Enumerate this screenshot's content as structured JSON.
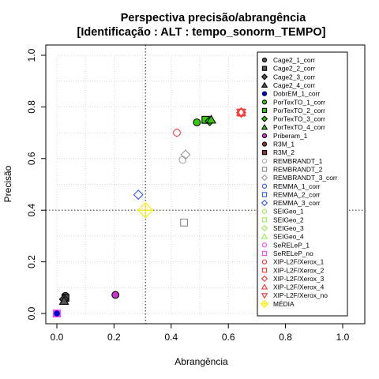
{
  "chart_data": {
    "type": "scatter",
    "title": "Perspectiva precisão/abrangência",
    "subtitle": "[Identificação : ALT : tempo_sonorm_TEMPO]",
    "xlabel": "Abrangência",
    "ylabel": "Precisão",
    "xlim": [
      0,
      1
    ],
    "ylim": [
      0,
      1
    ],
    "xticks": [
      "0.0",
      "0.2",
      "0.4",
      "0.6",
      "0.8",
      "1.0"
    ],
    "yticks": [
      "0.0",
      "0.2",
      "0.4",
      "0.6",
      "0.8",
      "1.0"
    ],
    "grid": true,
    "legend_position": "right",
    "reference_lines": {
      "x": 0.31,
      "y": 0.4
    },
    "series": [
      {
        "name": "Cage2_1_corr",
        "shape": "circle",
        "color": "#000000",
        "fill": "#555555",
        "points": [
          [
            0.03,
            0.068
          ]
        ]
      },
      {
        "name": "Cage2_2_corr",
        "shape": "square",
        "color": "#000000",
        "fill": "#555555",
        "points": [
          [
            0.03,
            0.06
          ]
        ]
      },
      {
        "name": "Cage2_3_corr",
        "shape": "diamond",
        "color": "#000000",
        "fill": "#555555",
        "points": [
          [
            0.025,
            0.055
          ]
        ]
      },
      {
        "name": "Cage2_4_corr",
        "shape": "triangle",
        "color": "#000000",
        "fill": "#555555",
        "points": [
          [
            0.025,
            0.048
          ]
        ]
      },
      {
        "name": "DobrEM_1_corr",
        "shape": "circle",
        "color": "#000066",
        "fill": "#0000cc",
        "points": [
          [
            0.0,
            0.0
          ]
        ]
      },
      {
        "name": "PorTexTO_1_corr",
        "shape": "circle",
        "color": "#000000",
        "fill": "#33cc00",
        "points": [
          [
            0.49,
            0.74
          ]
        ]
      },
      {
        "name": "PorTexTO_2_corr",
        "shape": "square",
        "color": "#000000",
        "fill": "#33cc00",
        "points": [
          [
            0.52,
            0.75
          ]
        ]
      },
      {
        "name": "PorTexTO_3_corr",
        "shape": "diamond",
        "color": "#000000",
        "fill": "#33cc00",
        "points": [
          [
            0.535,
            0.745
          ]
        ]
      },
      {
        "name": "PorTexTO_4_corr",
        "shape": "triangle",
        "color": "#000000",
        "fill": "#33cc00",
        "points": [
          [
            0.54,
            0.75
          ]
        ]
      },
      {
        "name": "Priberam_1",
        "shape": "circle",
        "color": "#000000",
        "fill": "#cc33cc",
        "points": [
          [
            0.205,
            0.072
          ]
        ]
      },
      {
        "name": "R3M_1",
        "shape": "circle",
        "color": "#000000",
        "fill": "#993333",
        "points": []
      },
      {
        "name": "R3M_2",
        "shape": "square",
        "color": "#000000",
        "fill": "#993333",
        "points": []
      },
      {
        "name": "REMBRANDT_1",
        "shape": "circle",
        "color": "#aaaaaa",
        "fill": "none",
        "points": [
          [
            0.44,
            0.595
          ]
        ]
      },
      {
        "name": "REMBRANDT_2",
        "shape": "square",
        "color": "#888888",
        "fill": "none",
        "points": [
          [
            0.445,
            0.352
          ]
        ]
      },
      {
        "name": "REMBRANDT_3_corr",
        "shape": "diamond",
        "color": "#999999",
        "fill": "none",
        "points": [
          [
            0.45,
            0.615
          ]
        ]
      },
      {
        "name": "REMMA_1_corr",
        "shape": "circle",
        "color": "#3355ff",
        "fill": "none",
        "points": [
          [
            0.0,
            0.0
          ]
        ]
      },
      {
        "name": "REMMA_2_corr",
        "shape": "square",
        "color": "#3355ff",
        "fill": "none",
        "points": [
          [
            0.0,
            0.0
          ]
        ]
      },
      {
        "name": "REMMA_3_corr",
        "shape": "diamond",
        "color": "#3355ff",
        "fill": "none",
        "points": [
          [
            0.285,
            0.46
          ]
        ]
      },
      {
        "name": "SEIGeo_1",
        "shape": "circle",
        "color": "#99ee55",
        "fill": "none",
        "points": []
      },
      {
        "name": "SEIGeo_2",
        "shape": "square",
        "color": "#99ee55",
        "fill": "none",
        "points": []
      },
      {
        "name": "SEIGeo_3",
        "shape": "diamond",
        "color": "#99ee55",
        "fill": "none",
        "points": []
      },
      {
        "name": "SEIGeo_4",
        "shape": "triangle",
        "color": "#99ee55",
        "fill": "none",
        "points": []
      },
      {
        "name": "SeRELeP_1",
        "shape": "circle",
        "color": "#ff44ff",
        "fill": "none",
        "points": [
          [
            0.0,
            0.0
          ]
        ]
      },
      {
        "name": "SeRELeP_no",
        "shape": "square",
        "color": "#ff44ff",
        "fill": "none",
        "points": [
          [
            0.0,
            0.0
          ]
        ]
      },
      {
        "name": "XIP-L2F/Xerox_1",
        "shape": "circle",
        "color": "#ff3333",
        "fill": "none",
        "points": [
          [
            0.42,
            0.7
          ]
        ]
      },
      {
        "name": "XIP-L2F/Xerox_2",
        "shape": "square",
        "color": "#ff3333",
        "fill": "none",
        "points": [
          [
            0.645,
            0.778
          ]
        ]
      },
      {
        "name": "XIP-L2F/Xerox_3",
        "shape": "diamond",
        "color": "#ff3333",
        "fill": "none",
        "points": [
          [
            0.645,
            0.778
          ]
        ]
      },
      {
        "name": "XIP-L2F/Xerox_4",
        "shape": "triangle",
        "color": "#ff3333",
        "fill": "none",
        "points": [
          [
            0.645,
            0.78
          ]
        ]
      },
      {
        "name": "XIP-L2F/Xerox_no",
        "shape": "triangle-down",
        "color": "#ff3333",
        "fill": "none",
        "points": [
          [
            0.645,
            0.778
          ]
        ]
      },
      {
        "name": "MÉDIA",
        "shape": "diamond-cross",
        "color": "#ffee00",
        "fill": "none",
        "points": [
          [
            0.31,
            0.4
          ]
        ]
      }
    ]
  }
}
